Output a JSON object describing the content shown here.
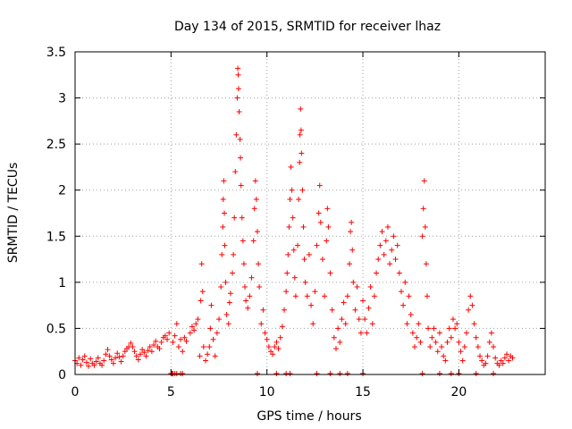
{
  "chart_data": {
    "type": "scatter",
    "title": "Day 134 of 2015, SRMTID for receiver lhaz",
    "xlabel": "GPS time / hours",
    "ylabel": "SRMTID / TECUs",
    "xlim": [
      0,
      24.5
    ],
    "ylim": [
      0,
      3.5
    ],
    "x_ticks": [
      0,
      5,
      10,
      15,
      20
    ],
    "x_tick_labels": [
      "0",
      "5",
      "10",
      "15",
      "20"
    ],
    "y_ticks": [
      0,
      0.5,
      1,
      1.5,
      2,
      2.5,
      3,
      3.5
    ],
    "y_tick_labels": [
      "0",
      "0.5",
      "1",
      "1.5",
      "2",
      "2.5",
      "3",
      "3.5"
    ],
    "grid": true,
    "marker": "+",
    "color": "#ff0000",
    "series": [
      {
        "name": "SRMTID",
        "points": [
          [
            0.0,
            0.15
          ],
          [
            0.1,
            0.12
          ],
          [
            0.2,
            0.18
          ],
          [
            0.3,
            0.1
          ],
          [
            0.4,
            0.16
          ],
          [
            0.5,
            0.2
          ],
          [
            0.6,
            0.13
          ],
          [
            0.7,
            0.09
          ],
          [
            0.8,
            0.17
          ],
          [
            0.9,
            0.12
          ],
          [
            1.0,
            0.1
          ],
          [
            1.1,
            0.14
          ],
          [
            1.2,
            0.18
          ],
          [
            1.3,
            0.12
          ],
          [
            1.4,
            0.1
          ],
          [
            1.5,
            0.15
          ],
          [
            1.6,
            0.22
          ],
          [
            1.7,
            0.27
          ],
          [
            1.8,
            0.2
          ],
          [
            1.9,
            0.16
          ],
          [
            2.0,
            0.12
          ],
          [
            2.1,
            0.18
          ],
          [
            2.2,
            0.23
          ],
          [
            2.3,
            0.19
          ],
          [
            2.4,
            0.14
          ],
          [
            2.5,
            0.2
          ],
          [
            2.6,
            0.25
          ],
          [
            2.7,
            0.28
          ],
          [
            2.8,
            0.3
          ],
          [
            2.9,
            0.34
          ],
          [
            3.0,
            0.3
          ],
          [
            3.1,
            0.25
          ],
          [
            3.2,
            0.2
          ],
          [
            3.3,
            0.16
          ],
          [
            3.4,
            0.22
          ],
          [
            3.5,
            0.27
          ],
          [
            3.6,
            0.24
          ],
          [
            3.7,
            0.2
          ],
          [
            3.8,
            0.26
          ],
          [
            3.9,
            0.3
          ],
          [
            4.0,
            0.25
          ],
          [
            4.1,
            0.32
          ],
          [
            4.2,
            0.36
          ],
          [
            4.3,
            0.3
          ],
          [
            4.4,
            0.28
          ],
          [
            4.5,
            0.35
          ],
          [
            4.6,
            0.4
          ],
          [
            4.7,
            0.42
          ],
          [
            4.8,
            0.38
          ],
          [
            4.9,
            0.45
          ],
          [
            5.0,
            0.01
          ],
          [
            5.05,
            0.01
          ],
          [
            5.1,
            0.01
          ],
          [
            5.2,
            0.01
          ],
          [
            5.3,
            0.01
          ],
          [
            5.5,
            0.01
          ],
          [
            5.6,
            0.01
          ],
          [
            5.1,
            0.35
          ],
          [
            5.2,
            0.42
          ],
          [
            5.3,
            0.55
          ],
          [
            5.4,
            0.3
          ],
          [
            5.5,
            0.38
          ],
          [
            5.6,
            0.25
          ],
          [
            5.7,
            0.4
          ],
          [
            5.8,
            0.36
          ],
          [
            6.0,
            0.45
          ],
          [
            6.1,
            0.52
          ],
          [
            6.2,
            0.48
          ],
          [
            6.3,
            0.55
          ],
          [
            6.4,
            0.6
          ],
          [
            6.5,
            0.2
          ],
          [
            6.55,
            0.8
          ],
          [
            6.6,
            1.2
          ],
          [
            6.65,
            0.9
          ],
          [
            6.7,
            0.3
          ],
          [
            6.8,
            0.15
          ],
          [
            6.9,
            0.22
          ],
          [
            7.0,
            0.3
          ],
          [
            7.05,
            0.5
          ],
          [
            7.1,
            0.75
          ],
          [
            7.2,
            0.38
          ],
          [
            7.3,
            0.2
          ],
          [
            7.4,
            0.45
          ],
          [
            7.5,
            0.6
          ],
          [
            7.6,
            0.95
          ],
          [
            7.65,
            1.3
          ],
          [
            7.7,
            1.6
          ],
          [
            7.72,
            1.9
          ],
          [
            7.75,
            2.1
          ],
          [
            7.78,
            1.75
          ],
          [
            7.8,
            1.4
          ],
          [
            7.85,
            1.0
          ],
          [
            7.9,
            0.65
          ],
          [
            8.0,
            0.55
          ],
          [
            8.05,
            0.78
          ],
          [
            8.1,
            0.88
          ],
          [
            8.2,
            1.1
          ],
          [
            8.25,
            1.3
          ],
          [
            8.3,
            1.7
          ],
          [
            8.35,
            2.2
          ],
          [
            8.4,
            2.6
          ],
          [
            8.45,
            3.0
          ],
          [
            8.48,
            3.32
          ],
          [
            8.5,
            3.25
          ],
          [
            8.52,
            3.1
          ],
          [
            8.55,
            2.85
          ],
          [
            8.6,
            2.55
          ],
          [
            8.62,
            2.35
          ],
          [
            8.65,
            2.05
          ],
          [
            8.7,
            1.7
          ],
          [
            8.75,
            1.45
          ],
          [
            8.8,
            1.2
          ],
          [
            8.85,
            0.95
          ],
          [
            8.9,
            0.8
          ],
          [
            9.0,
            0.72
          ],
          [
            9.1,
            0.85
          ],
          [
            9.2,
            1.05
          ],
          [
            9.3,
            1.45
          ],
          [
            9.35,
            1.8
          ],
          [
            9.4,
            2.1
          ],
          [
            9.45,
            1.9
          ],
          [
            9.5,
            1.55
          ],
          [
            9.55,
            1.2
          ],
          [
            9.6,
            0.95
          ],
          [
            9.7,
            0.55
          ],
          [
            9.8,
            0.7
          ],
          [
            9.9,
            0.45
          ],
          [
            10.0,
            0.38
          ],
          [
            10.1,
            0.3
          ],
          [
            9.5,
            0.01
          ],
          [
            10.5,
            0.01
          ],
          [
            11.0,
            0.01
          ],
          [
            11.2,
            0.01
          ],
          [
            10.2,
            0.25
          ],
          [
            10.3,
            0.22
          ],
          [
            10.4,
            0.3
          ],
          [
            10.5,
            0.35
          ],
          [
            10.6,
            0.28
          ],
          [
            10.7,
            0.4
          ],
          [
            10.8,
            0.52
          ],
          [
            10.9,
            0.7
          ],
          [
            11.0,
            0.9
          ],
          [
            11.05,
            1.1
          ],
          [
            11.1,
            1.3
          ],
          [
            11.15,
            1.6
          ],
          [
            11.2,
            1.9
          ],
          [
            11.25,
            2.25
          ],
          [
            11.3,
            2.0
          ],
          [
            11.35,
            1.7
          ],
          [
            11.4,
            1.35
          ],
          [
            11.45,
            1.05
          ],
          [
            11.5,
            0.85
          ],
          [
            11.6,
            1.4
          ],
          [
            11.65,
            1.9
          ],
          [
            11.7,
            2.3
          ],
          [
            11.72,
            2.6
          ],
          [
            11.75,
            2.88
          ],
          [
            11.78,
            2.65
          ],
          [
            11.8,
            2.4
          ],
          [
            11.85,
            2.0
          ],
          [
            11.9,
            1.6
          ],
          [
            11.95,
            1.25
          ],
          [
            12.0,
            1.0
          ],
          [
            12.1,
            0.85
          ],
          [
            12.2,
            1.3
          ],
          [
            12.3,
            0.75
          ],
          [
            12.4,
            0.55
          ],
          [
            12.5,
            0.9
          ],
          [
            12.6,
            1.4
          ],
          [
            12.7,
            1.75
          ],
          [
            12.75,
            2.05
          ],
          [
            12.8,
            1.65
          ],
          [
            12.9,
            1.25
          ],
          [
            13.0,
            0.85
          ],
          [
            13.1,
            1.45
          ],
          [
            13.15,
            1.8
          ],
          [
            13.2,
            1.6
          ],
          [
            13.3,
            1.1
          ],
          [
            13.4,
            0.7
          ],
          [
            13.5,
            0.4
          ],
          [
            13.6,
            0.28
          ],
          [
            13.7,
            0.5
          ],
          [
            13.8,
            0.35
          ],
          [
            13.9,
            0.6
          ],
          [
            14.0,
            0.78
          ],
          [
            12.6,
            0.01
          ],
          [
            13.3,
            0.01
          ],
          [
            13.8,
            0.01
          ],
          [
            14.2,
            0.01
          ],
          [
            15.0,
            0.01
          ],
          [
            14.1,
            0.55
          ],
          [
            14.2,
            0.85
          ],
          [
            14.3,
            1.2
          ],
          [
            14.35,
            1.55
          ],
          [
            14.4,
            1.65
          ],
          [
            14.45,
            1.35
          ],
          [
            14.5,
            1.0
          ],
          [
            14.6,
            0.7
          ],
          [
            14.7,
            0.95
          ],
          [
            14.8,
            0.6
          ],
          [
            14.9,
            0.45
          ],
          [
            15.0,
            0.8
          ],
          [
            15.1,
            0.6
          ],
          [
            15.2,
            0.45
          ],
          [
            15.3,
            0.72
          ],
          [
            15.4,
            0.95
          ],
          [
            15.5,
            0.55
          ],
          [
            15.6,
            0.85
          ],
          [
            15.7,
            1.1
          ],
          [
            15.8,
            1.25
          ],
          [
            15.9,
            1.4
          ],
          [
            16.0,
            1.55
          ],
          [
            16.1,
            1.3
          ],
          [
            16.2,
            1.45
          ],
          [
            16.3,
            1.6
          ],
          [
            16.4,
            1.2
          ],
          [
            16.5,
            1.35
          ],
          [
            16.6,
            1.5
          ],
          [
            16.7,
            1.25
          ],
          [
            16.8,
            1.4
          ],
          [
            16.9,
            1.1
          ],
          [
            17.0,
            0.9
          ],
          [
            17.1,
            0.75
          ],
          [
            17.2,
            1.0
          ],
          [
            17.3,
            0.55
          ],
          [
            17.4,
            0.85
          ],
          [
            17.5,
            0.65
          ],
          [
            17.6,
            0.45
          ],
          [
            17.7,
            0.3
          ],
          [
            17.8,
            0.4
          ],
          [
            17.9,
            0.55
          ],
          [
            18.0,
            0.35
          ],
          [
            18.1,
            1.5
          ],
          [
            18.15,
            1.8
          ],
          [
            18.2,
            2.1
          ],
          [
            18.25,
            1.6
          ],
          [
            18.3,
            1.2
          ],
          [
            18.35,
            0.85
          ],
          [
            18.4,
            0.5
          ],
          [
            18.5,
            0.3
          ],
          [
            18.6,
            0.4
          ],
          [
            18.1,
            0.01
          ],
          [
            19.0,
            0.01
          ],
          [
            19.6,
            0.01
          ],
          [
            20.0,
            0.01
          ],
          [
            20.9,
            0.01
          ],
          [
            21.8,
            0.01
          ],
          [
            18.7,
            0.5
          ],
          [
            18.8,
            0.35
          ],
          [
            18.9,
            0.25
          ],
          [
            19.0,
            0.45
          ],
          [
            19.1,
            0.3
          ],
          [
            19.2,
            0.2
          ],
          [
            19.3,
            0.15
          ],
          [
            19.4,
            0.35
          ],
          [
            19.5,
            0.5
          ],
          [
            19.6,
            0.4
          ],
          [
            19.7,
            0.6
          ],
          [
            19.8,
            0.5
          ],
          [
            19.9,
            0.55
          ],
          [
            20.0,
            0.35
          ],
          [
            20.1,
            0.25
          ],
          [
            20.2,
            0.15
          ],
          [
            20.3,
            0.3
          ],
          [
            20.4,
            0.45
          ],
          [
            20.5,
            0.7
          ],
          [
            20.6,
            0.85
          ],
          [
            20.7,
            0.75
          ],
          [
            20.8,
            0.55
          ],
          [
            20.9,
            0.4
          ],
          [
            21.0,
            0.3
          ],
          [
            21.1,
            0.2
          ],
          [
            21.2,
            0.15
          ],
          [
            21.3,
            0.1
          ],
          [
            21.4,
            0.12
          ],
          [
            21.5,
            0.2
          ],
          [
            21.6,
            0.35
          ],
          [
            21.7,
            0.45
          ],
          [
            21.8,
            0.3
          ],
          [
            21.9,
            0.18
          ],
          [
            22.0,
            0.12
          ],
          [
            22.1,
            0.1
          ],
          [
            22.2,
            0.15
          ],
          [
            22.3,
            0.12
          ],
          [
            22.4,
            0.18
          ],
          [
            22.5,
            0.22
          ],
          [
            22.6,
            0.15
          ],
          [
            22.7,
            0.2
          ],
          [
            22.8,
            0.18
          ]
        ]
      }
    ]
  }
}
